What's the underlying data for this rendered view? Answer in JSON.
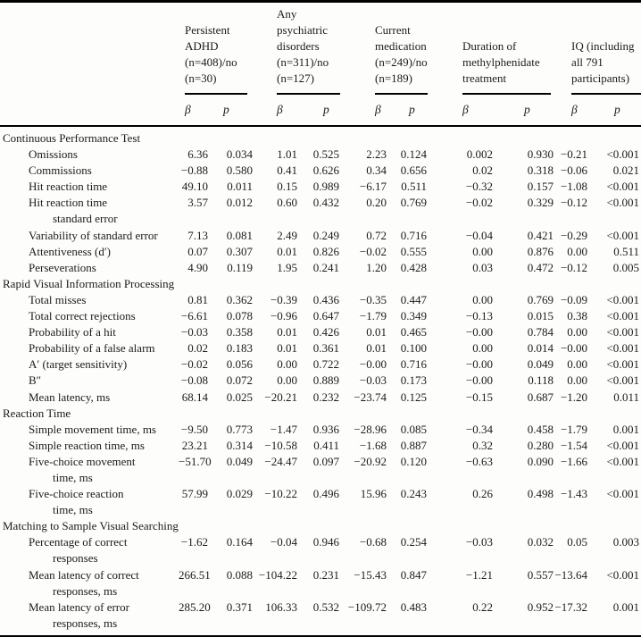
{
  "table": {
    "beta_label": "β",
    "p_label": "p",
    "columns": [
      {
        "title": [
          "Persistent",
          "ADHD",
          "(n=408)/no",
          "(n=30)"
        ]
      },
      {
        "title": [
          "Any",
          "psychiatric",
          "disorders",
          "(n=311)/no",
          "(n=127)"
        ]
      },
      {
        "title": [
          "Current",
          "medication",
          "(n=249)/no",
          "(n=189)"
        ]
      },
      {
        "title": [
          "Duration of",
          "methylphenidate",
          "treatment"
        ]
      },
      {
        "title": [
          "IQ (including",
          "all 791",
          "participants)"
        ]
      }
    ],
    "sections": [
      {
        "name": "Continuous Performance Test",
        "rows": [
          {
            "label": "Omissions",
            "values": [
              "6.36",
              "0.034",
              "1.01",
              "0.525",
              "2.23",
              "0.124",
              "0.002",
              "0.930",
              "−0.21",
              "<0.001"
            ]
          },
          {
            "label": "Commissions",
            "values": [
              "−0.88",
              "0.580",
              "0.41",
              "0.626",
              "0.34",
              "0.656",
              "0.02",
              "0.318",
              "−0.06",
              "0.021"
            ]
          },
          {
            "label": "Hit reaction time",
            "values": [
              "49.10",
              "0.011",
              "0.15",
              "0.989",
              "−6.17",
              "0.511",
              "−0.32",
              "0.157",
              "−1.08",
              "<0.001"
            ]
          },
          {
            "label": "Hit reaction time",
            "label2": "standard error",
            "values": [
              "3.57",
              "0.012",
              "0.60",
              "0.432",
              "0.20",
              "0.769",
              "−0.02",
              "0.329",
              "−0.12",
              "<0.001"
            ]
          },
          {
            "label": "Variability of standard error",
            "values": [
              "7.13",
              "0.081",
              "2.49",
              "0.249",
              "0.72",
              "0.716",
              "−0.04",
              "0.421",
              "−0.29",
              "<0.001"
            ]
          },
          {
            "label": "Attentiveness (d′)",
            "values": [
              "0.07",
              "0.307",
              "0.01",
              "0.826",
              "−0.02",
              "0.555",
              "0.00",
              "0.876",
              "0.00",
              "0.511"
            ]
          },
          {
            "label": "Perseverations",
            "values": [
              "4.90",
              "0.119",
              "1.95",
              "0.241",
              "1.20",
              "0.428",
              "0.03",
              "0.472",
              "−0.12",
              "0.005"
            ]
          }
        ]
      },
      {
        "name": "Rapid Visual Information Processing",
        "rows": [
          {
            "label": "Total misses",
            "values": [
              "0.81",
              "0.362",
              "−0.39",
              "0.436",
              "−0.35",
              "0.447",
              "0.00",
              "0.769",
              "−0.09",
              "<0.001"
            ]
          },
          {
            "label": "Total correct rejections",
            "values": [
              "−6.61",
              "0.078",
              "−0.96",
              "0.647",
              "−1.79",
              "0.349",
              "−0.13",
              "0.015",
              "0.38",
              "<0.001"
            ]
          },
          {
            "label": "Probability of a hit",
            "values": [
              "−0.03",
              "0.358",
              "0.01",
              "0.426",
              "0.01",
              "0.465",
              "−0.00",
              "0.784",
              "0.00",
              "<0.001"
            ]
          },
          {
            "label": "Probability of a false alarm",
            "values": [
              "0.02",
              "0.183",
              "0.01",
              "0.361",
              "0.01",
              "0.100",
              "0.00",
              "0.014",
              "−0.00",
              "<0.001"
            ]
          },
          {
            "label": "A′ (target sensitivity)",
            "values": [
              "−0.02",
              "0.056",
              "0.00",
              "0.722",
              "−0.00",
              "0.716",
              "−0.00",
              "0.049",
              "0.00",
              "<0.001"
            ]
          },
          {
            "label": "B″",
            "values": [
              "−0.08",
              "0.072",
              "0.00",
              "0.889",
              "−0.03",
              "0.173",
              "−0.00",
              "0.118",
              "0.00",
              "<0.001"
            ]
          },
          {
            "label": "Mean latency, ms",
            "values": [
              "68.14",
              "0.025",
              "−20.21",
              "0.232",
              "−23.74",
              "0.125",
              "−0.15",
              "0.687",
              "−1.20",
              "0.011"
            ]
          }
        ]
      },
      {
        "name": "Reaction Time",
        "rows": [
          {
            "label": "Simple movement time, ms",
            "values": [
              "−9.50",
              "0.773",
              "−1.47",
              "0.936",
              "−28.96",
              "0.085",
              "−0.34",
              "0.458",
              "−1.79",
              "0.001"
            ]
          },
          {
            "label": "Simple reaction time, ms",
            "values": [
              "23.21",
              "0.314",
              "−10.58",
              "0.411",
              "−1.68",
              "0.887",
              "0.32",
              "0.280",
              "−1.54",
              "<0.001"
            ]
          },
          {
            "label": "Five-choice movement",
            "label2": "time, ms",
            "values": [
              "−51.70",
              "0.049",
              "−24.47",
              "0.097",
              "−20.92",
              "0.120",
              "−0.63",
              "0.090",
              "−1.66",
              "<0.001"
            ]
          },
          {
            "label": "Five-choice reaction",
            "label2": "time, ms",
            "values": [
              "57.99",
              "0.029",
              "−10.22",
              "0.496",
              "15.96",
              "0.243",
              "0.26",
              "0.498",
              "−1.43",
              "<0.001"
            ]
          }
        ]
      },
      {
        "name": "Matching to Sample Visual Searching",
        "rows": [
          {
            "label": "Percentage of correct",
            "label2": "responses",
            "values": [
              "−1.62",
              "0.164",
              "−0.04",
              "0.946",
              "−0.68",
              "0.254",
              "−0.03",
              "0.032",
              "0.05",
              "0.003"
            ]
          },
          {
            "label": "Mean latency of correct",
            "label2": "responses, ms",
            "values": [
              "266.51",
              "0.088",
              "−104.22",
              "0.231",
              "−15.43",
              "0.847",
              "−1.21",
              "0.557",
              "−13.64",
              "<0.001"
            ]
          },
          {
            "label": "Mean latency of error",
            "label2": "responses, ms",
            "values": [
              "285.20",
              "0.371",
              "106.33",
              "0.532",
              "−109.72",
              "0.483",
              "0.22",
              "0.952",
              "−17.32",
              "0.001"
            ]
          }
        ]
      }
    ]
  }
}
